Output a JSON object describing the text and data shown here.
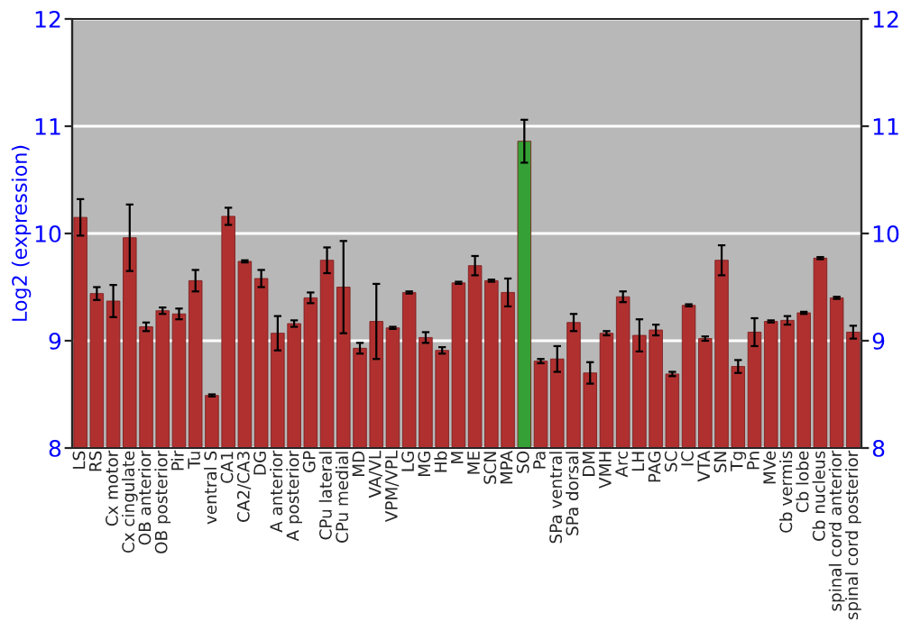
{
  "chart_data": {
    "type": "bar",
    "ylabel": "Log2 (expression)",
    "categories": [
      "LS",
      "RS",
      "Cx motor",
      "Cx cingulate",
      "OB anterior",
      "OB posterior",
      "Pir",
      "Tu",
      "ventral S",
      "CA1",
      "CA2/CA3",
      "DG",
      "A anterior",
      "A posterior",
      "GP",
      "CPu lateral",
      "CPu medial",
      "MD",
      "VA/VL",
      "VPM/VPL",
      "LG",
      "MG",
      "Hb",
      "M",
      "ME",
      "SCN",
      "MPA",
      "SO",
      "Pa",
      "SPa ventral",
      "SPa dorsal",
      "DM",
      "VMH",
      "Arc",
      "LH",
      "PAG",
      "SC",
      "IC",
      "VTA",
      "SN",
      "Tg",
      "Pn",
      "MVe",
      "Cb vermis",
      "Cb lobe",
      "Cb nucleus",
      "spinal cord anterior",
      "spinal cord posterior"
    ],
    "values": [
      10.15,
      9.44,
      9.37,
      9.96,
      9.13,
      9.28,
      9.25,
      9.56,
      8.49,
      10.16,
      9.74,
      9.58,
      9.07,
      9.16,
      9.4,
      9.75,
      9.5,
      8.93,
      9.18,
      9.12,
      9.45,
      9.03,
      8.91,
      9.54,
      9.7,
      9.56,
      9.45,
      10.86,
      8.81,
      8.83,
      9.17,
      8.7,
      9.07,
      9.41,
      9.05,
      9.1,
      8.69,
      9.33,
      9.02,
      9.75,
      8.76,
      9.08,
      9.18,
      9.19,
      9.26,
      9.77,
      9.4,
      9.08
    ],
    "errors": [
      0.17,
      0.06,
      0.15,
      0.31,
      0.04,
      0.03,
      0.05,
      0.1,
      0.01,
      0.08,
      0.01,
      0.08,
      0.16,
      0.03,
      0.05,
      0.12,
      0.43,
      0.05,
      0.35,
      0.01,
      0.01,
      0.05,
      0.03,
      0.01,
      0.09,
      0.01,
      0.13,
      0.2,
      0.02,
      0.12,
      0.08,
      0.1,
      0.02,
      0.05,
      0.15,
      0.05,
      0.02,
      0.01,
      0.02,
      0.14,
      0.06,
      0.13,
      0.01,
      0.04,
      0.01,
      0.01,
      0.01,
      0.06
    ],
    "colors": [
      "#b03030",
      "#b03030",
      "#b03030",
      "#b03030",
      "#b03030",
      "#b03030",
      "#b03030",
      "#b03030",
      "#b03030",
      "#b03030",
      "#b03030",
      "#b03030",
      "#b03030",
      "#b03030",
      "#b03030",
      "#b03030",
      "#b03030",
      "#b03030",
      "#b03030",
      "#b03030",
      "#b03030",
      "#b03030",
      "#b03030",
      "#b03030",
      "#b03030",
      "#b03030",
      "#b03030",
      "#35a035",
      "#b03030",
      "#b03030",
      "#b03030",
      "#b03030",
      "#b03030",
      "#b03030",
      "#b03030",
      "#b03030",
      "#b03030",
      "#b03030",
      "#b03030",
      "#b03030",
      "#b03030",
      "#b03030",
      "#b03030",
      "#b03030",
      "#b03030",
      "#b03030",
      "#b03030",
      "#b03030"
    ],
    "ylim": [
      8,
      12
    ],
    "yticks": [
      8,
      9,
      10,
      11,
      12
    ],
    "y2lim": [
      8,
      12
    ],
    "y2ticks": [
      8,
      9,
      10,
      11,
      12
    ],
    "grid": "y"
  }
}
